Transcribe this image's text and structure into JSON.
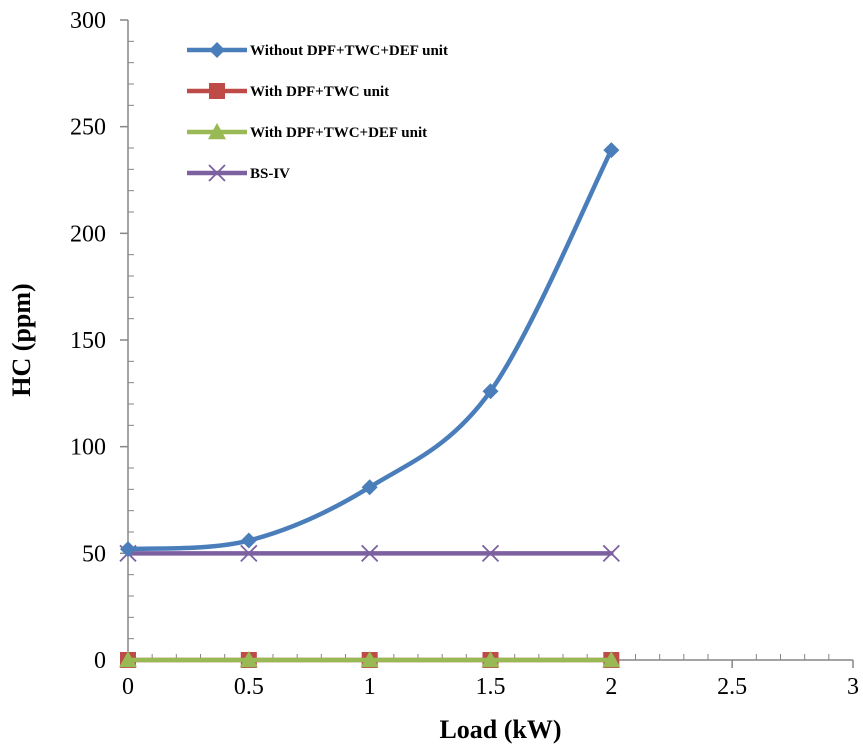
{
  "chart_data": {
    "type": "line",
    "xlabel": "Load (kW)",
    "ylabel": "HC  (ppm)",
    "xlim": [
      0,
      3
    ],
    "ylim": [
      0,
      300
    ],
    "xticks": [
      0,
      0.5,
      1,
      1.5,
      2,
      2.5,
      3
    ],
    "yticks": [
      0,
      50,
      100,
      150,
      200,
      250,
      300
    ],
    "xtick_labels": [
      "0",
      "0.5",
      "1",
      "1.5",
      "2",
      "2.5",
      "3"
    ],
    "ytick_labels": [
      "0",
      "50",
      "100",
      "150",
      "200",
      "250",
      "300"
    ],
    "grid": false,
    "legend_position": "top-left",
    "x": [
      0,
      0.5,
      1,
      1.5,
      2
    ],
    "series": [
      {
        "name": "Without DPF+TWC+DEF unit",
        "values": [
          52,
          56,
          81,
          126,
          239
        ],
        "color": "#4a7ebb",
        "marker": "diamond",
        "smooth": true
      },
      {
        "name": "With DPF+TWC unit",
        "values": [
          0,
          0,
          0,
          0,
          0
        ],
        "color": "#be4b48",
        "marker": "square",
        "smooth": false
      },
      {
        "name": "With DPF+TWC+DEF unit",
        "values": [
          0,
          0,
          0,
          0,
          0
        ],
        "color": "#98b954",
        "marker": "triangle",
        "smooth": false
      },
      {
        "name": "BS-IV",
        "values": [
          50,
          50,
          50,
          50,
          50
        ],
        "color": "#7d60a0",
        "marker": "x",
        "smooth": false
      }
    ]
  }
}
